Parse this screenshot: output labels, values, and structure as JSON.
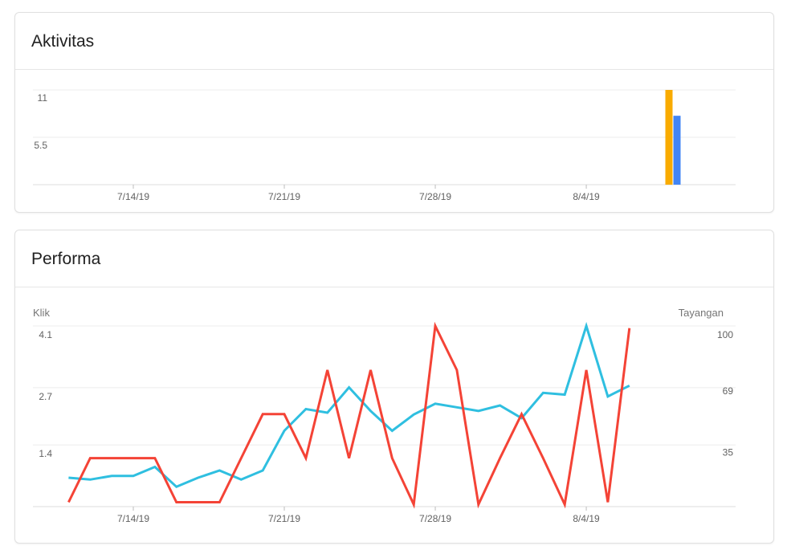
{
  "cards": {
    "activity": {
      "title": "Aktivitas"
    },
    "performance": {
      "title": "Performa"
    }
  },
  "chart_data": [
    {
      "type": "bar",
      "title": "Aktivitas",
      "x_ticks": [
        "7/14/19",
        "7/21/19",
        "7/28/19",
        "8/4/19"
      ],
      "y_ticks": [
        "5.5",
        "11"
      ],
      "ylim": [
        0,
        11
      ],
      "grid": true,
      "bars": [
        {
          "date": "8/8/19",
          "value": 11,
          "color": "#F9AB00"
        },
        {
          "date": "8/8/19",
          "value": 8,
          "color": "#4285F4"
        }
      ]
    },
    {
      "type": "line",
      "title": "Performa",
      "ylabel_left": "Klik",
      "ylabel_right": "Tayangan",
      "x_ticks": [
        "7/14/19",
        "7/21/19",
        "7/28/19",
        "8/4/19"
      ],
      "x_dates": [
        "7/11/19",
        "7/12/19",
        "7/13/19",
        "7/14/19",
        "7/15/19",
        "7/16/19",
        "7/17/19",
        "7/18/19",
        "7/19/19",
        "7/20/19",
        "7/21/19",
        "7/22/19",
        "7/23/19",
        "7/24/19",
        "7/25/19",
        "7/26/19",
        "7/27/19",
        "7/28/19",
        "7/29/19",
        "7/30/19",
        "7/31/19",
        "8/1/19",
        "8/2/19",
        "8/3/19",
        "8/4/19",
        "8/5/19",
        "8/6/19"
      ],
      "y_left_ticks": [
        "1.4",
        "2.7",
        "4.1"
      ],
      "y_right_ticks": [
        "35",
        "69",
        "100"
      ],
      "ylim_left": [
        0,
        4.1
      ],
      "ylim_right": [
        0,
        100
      ],
      "grid": true,
      "series": [
        {
          "axis": "left",
          "color": "#F44336",
          "values": [
            0.1,
            1.1,
            1.1,
            1.1,
            1.1,
            0.1,
            0.1,
            0.1,
            1.1,
            2.1,
            2.1,
            1.1,
            3.1,
            1.1,
            3.1,
            1.1,
            0.05,
            4.1,
            3.1,
            0.05,
            1.1,
            2.1,
            1.1,
            0.05,
            3.1,
            0.1,
            4.05
          ]
        },
        {
          "axis": "right",
          "color": "#2FBFE0",
          "values": [
            16,
            15,
            17,
            17,
            22,
            11,
            16,
            20,
            15,
            20,
            42,
            54,
            52,
            66,
            53,
            42,
            51,
            57,
            55,
            53,
            56,
            49,
            63,
            62,
            100,
            61,
            67
          ]
        }
      ]
    }
  ]
}
